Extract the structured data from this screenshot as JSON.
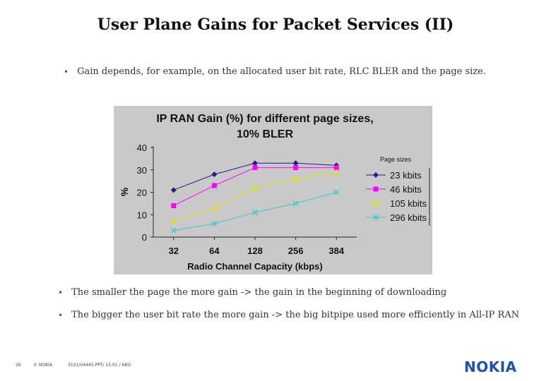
{
  "slide": {
    "title": "User Plane Gains for Packet Services (II)",
    "top_bullet": "Gain depends, for example, on the allocated user bit rate, RLC BLER and the page size.",
    "bottom_bullets": [
      "The smaller the page the more gain -> the gain in the beginning of downloading",
      "The bigger the user bit rate the more gain -> the big bitpipe used more efficiently in All-IP RAN"
    ],
    "footer": {
      "page": "26",
      "copyright": "© NOKIA",
      "doc": "3101/V4445.PPT/ 15.01 / ABO"
    },
    "logo": "NOKIA",
    "bullet_color": "#2a5db0"
  },
  "chart_data": {
    "type": "line",
    "title": "IP RAN Gain (%) for different page sizes, 10% BLER",
    "title_lines": [
      "IP RAN Gain (%) for different page sizes,",
      "10% BLER"
    ],
    "xlabel": "Radio Channel Capacity (kbps)",
    "ylabel": "%",
    "categories": [
      "32",
      "64",
      "128",
      "256",
      "384"
    ],
    "ylim": [
      0,
      40
    ],
    "yticks": [
      0,
      10,
      20,
      30,
      40
    ],
    "legend_title": "Page sizes",
    "legend_position": "right",
    "grid": false,
    "series": [
      {
        "name": "23 kbits",
        "values": [
          21,
          28,
          33,
          33,
          32
        ],
        "color": "#1a237e",
        "marker": "diamond"
      },
      {
        "name": "46 kbits",
        "values": [
          14,
          23,
          31,
          31,
          31
        ],
        "color": "#ff00ff",
        "marker": "square"
      },
      {
        "name": "105 kbits",
        "values": [
          7,
          13,
          22,
          26,
          29
        ],
        "color": "#e6e600",
        "marker": "triangle"
      },
      {
        "name": "296 kbits",
        "values": [
          3,
          6,
          11,
          15,
          20
        ],
        "color": "#33cccc",
        "marker": "x"
      }
    ]
  }
}
